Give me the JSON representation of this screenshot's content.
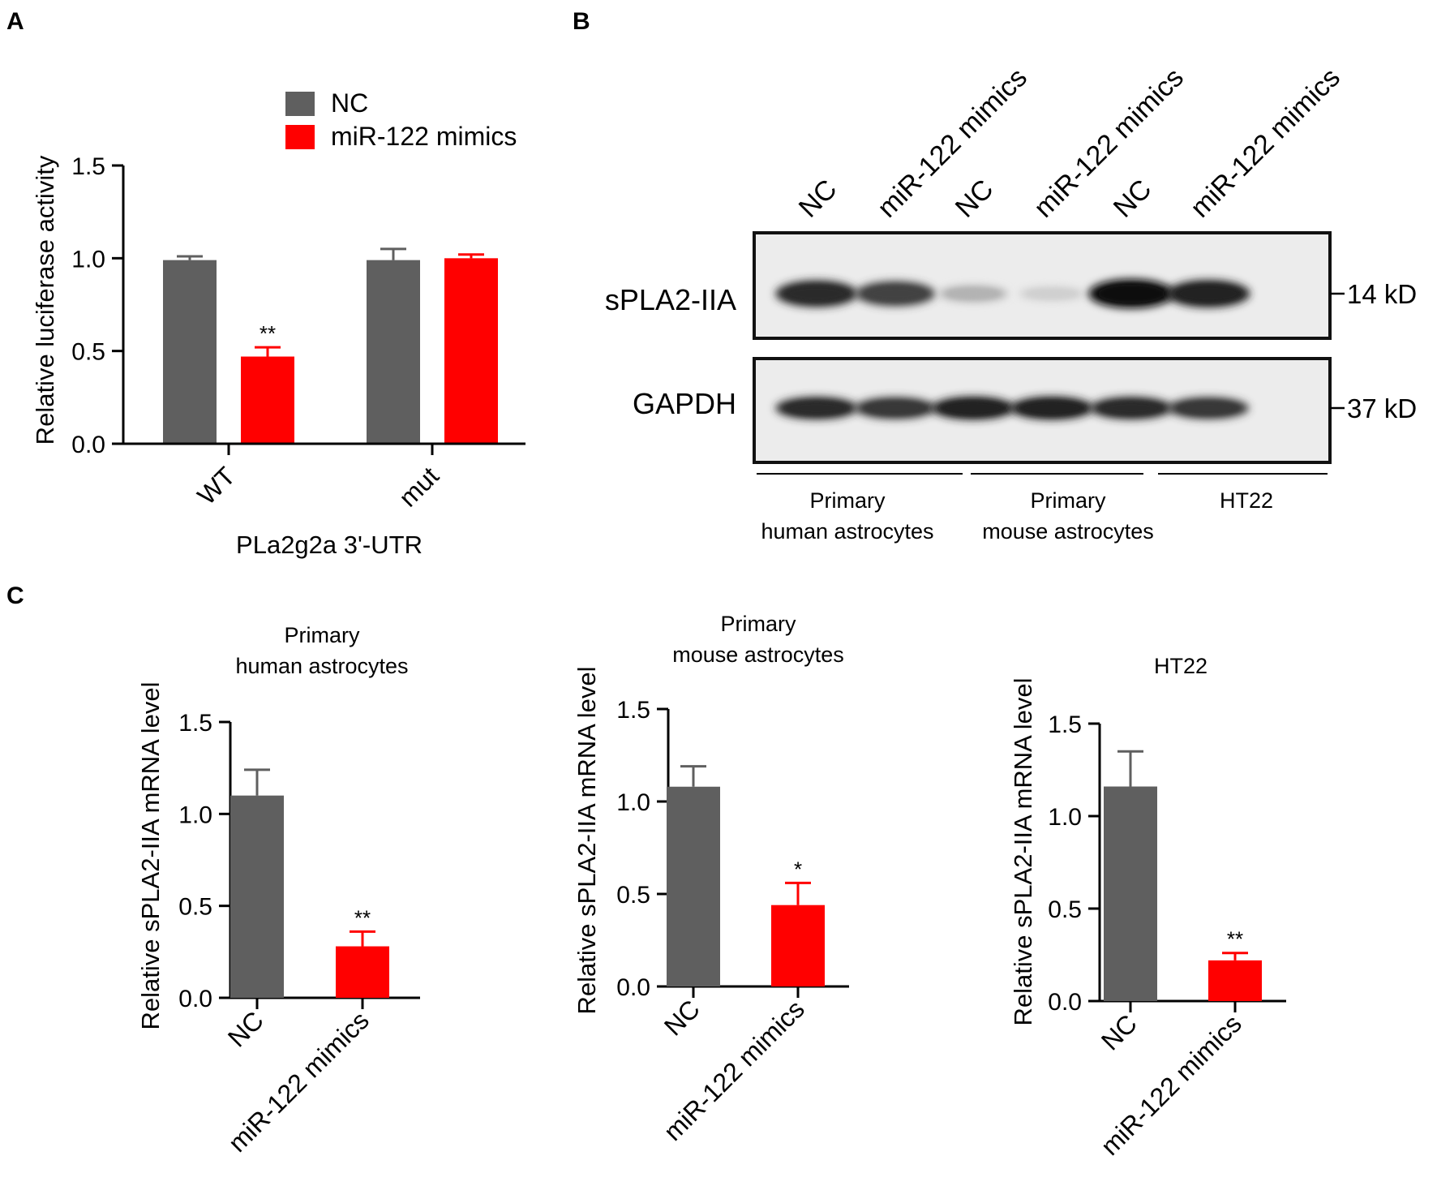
{
  "panels": {
    "A": {
      "letter": "A",
      "chart_data": {
        "type": "bar",
        "categories": [
          "WT",
          "mut"
        ],
        "series": [
          {
            "name": "NC",
            "values": [
              0.99,
              0.99
            ],
            "errors": [
              0.02,
              0.06
            ],
            "color": "#5f5f5f"
          },
          {
            "name": "miR-122 mimics",
            "values": [
              0.47,
              1.0
            ],
            "errors": [
              0.05,
              0.02
            ],
            "color": "#ff0000"
          }
        ],
        "significance": [
          [
            "",
            ""
          ],
          [
            "**",
            ""
          ]
        ],
        "ylim": [
          0,
          1.5
        ],
        "yticks": [
          "0.0",
          "0.5",
          "1.0",
          "1.5"
        ],
        "ylabel": "Relative luciferase activity",
        "xlabel": "PLa2g2a 3'-UTR",
        "legend_position": "top-right"
      }
    },
    "B": {
      "letter": "B",
      "lanes": [
        "NC",
        "miR-122 mimics",
        "NC",
        "miR-122 mimics",
        "NC",
        "miR-122 mimics"
      ],
      "rows": [
        {
          "label": "sPLA2-IIA",
          "marker": "14 kD",
          "band_intensity": [
            0.85,
            0.75,
            0.25,
            0.12,
            1.0,
            0.9
          ]
        },
        {
          "label": "GAPDH",
          "marker": "37 kD",
          "band_intensity": [
            0.85,
            0.8,
            0.9,
            0.9,
            0.85,
            0.8
          ]
        }
      ],
      "groups": [
        {
          "line1": "Primary",
          "line2": "human astrocytes"
        },
        {
          "line1": "Primary",
          "line2": "mouse astrocytes"
        },
        {
          "line1": "",
          "line2": "HT22"
        }
      ]
    },
    "C": {
      "letter": "C",
      "chart_data": [
        {
          "type": "bar",
          "title_line1": "Primary",
          "title_line2": "human astrocytes",
          "categories": [
            "NC",
            "miR-122 mimics"
          ],
          "values": [
            1.1,
            0.28
          ],
          "errors": [
            0.14,
            0.08
          ],
          "colors": [
            "#5f5f5f",
            "#ff0000"
          ],
          "significance": [
            "",
            "**"
          ],
          "ylim": [
            0,
            1.5
          ],
          "yticks": [
            "0.0",
            "0.5",
            "1.0",
            "1.5"
          ],
          "ylabel": "Relative sPLA2-IIA mRNA level"
        },
        {
          "type": "bar",
          "title_line1": "Primary",
          "title_line2": "mouse astrocytes",
          "categories": [
            "NC",
            "miR-122 mimics"
          ],
          "values": [
            1.08,
            0.44
          ],
          "errors": [
            0.11,
            0.12
          ],
          "colors": [
            "#5f5f5f",
            "#ff0000"
          ],
          "significance": [
            "",
            "*"
          ],
          "ylim": [
            0,
            1.5
          ],
          "yticks": [
            "0.0",
            "0.5",
            "1.0",
            "1.5"
          ],
          "ylabel": "Relative sPLA2-IIA mRNA level"
        },
        {
          "type": "bar",
          "title_line1": "",
          "title_line2": "HT22",
          "categories": [
            "NC",
            "miR-122 mimics"
          ],
          "values": [
            1.16,
            0.22
          ],
          "errors": [
            0.19,
            0.04
          ],
          "colors": [
            "#5f5f5f",
            "#ff0000"
          ],
          "significance": [
            "",
            "**"
          ],
          "ylim": [
            0,
            1.5
          ],
          "yticks": [
            "0.0",
            "0.5",
            "1.0",
            "1.5"
          ],
          "ylabel": "Relative sPLA2-IIA mRNA level"
        }
      ]
    }
  }
}
